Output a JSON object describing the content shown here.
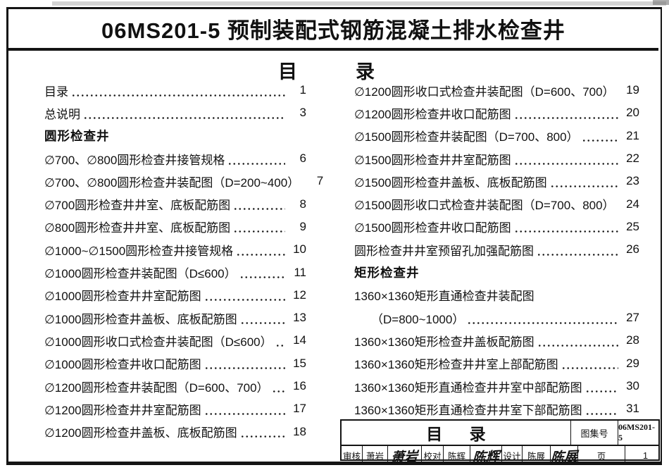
{
  "header": {
    "title": "06MS201-5 预制装配式钢筋混凝土排水检查井"
  },
  "toc_heading": {
    "left_char": "目",
    "right_char": "录"
  },
  "toc": {
    "left": [
      {
        "t": "entry",
        "label": "目录",
        "page": "1"
      },
      {
        "t": "entry",
        "label": "总说明",
        "page": "3"
      },
      {
        "t": "section",
        "label": "圆形检查井"
      },
      {
        "t": "entry",
        "label": "∅700、∅800圆形检查井接管规格",
        "page": "6"
      },
      {
        "t": "entry",
        "label": "∅700、∅800圆形检查井装配图（D=200~400）",
        "page": "7"
      },
      {
        "t": "entry",
        "label": "∅700圆形检查井井室、底板配筋图",
        "page": "8"
      },
      {
        "t": "entry",
        "label": "∅800圆形检查井井室、底板配筋图",
        "page": "9"
      },
      {
        "t": "entry",
        "label": "∅1000~∅1500圆形检查井接管规格",
        "page": "10"
      },
      {
        "t": "entry",
        "label": "∅1000圆形检查井装配图（D≤600）",
        "page": "11"
      },
      {
        "t": "entry",
        "label": "∅1000圆形检查井井室配筋图",
        "page": "12"
      },
      {
        "t": "entry",
        "label": "∅1000圆形检查井盖板、底板配筋图",
        "page": "13"
      },
      {
        "t": "entry",
        "label": "∅1000圆形收口式检查井装配图（D≤600）",
        "page": "14"
      },
      {
        "t": "entry",
        "label": "∅1000圆形检查井收口配筋图",
        "page": "15"
      },
      {
        "t": "entry",
        "label": "∅1200圆形检查井装配图（D=600、700）",
        "page": "16"
      },
      {
        "t": "entry",
        "label": "∅1200圆形检查井井室配筋图",
        "page": "17"
      },
      {
        "t": "entry",
        "label": "∅1200圆形检查井盖板、底板配筋图",
        "page": "18"
      }
    ],
    "right": [
      {
        "t": "entry",
        "label": "∅1200圆形收口式检查井装配图（D=600、700）",
        "page": "19"
      },
      {
        "t": "entry",
        "label": "∅1200圆形检查井收口配筋图",
        "page": "20"
      },
      {
        "t": "entry",
        "label": "∅1500圆形检查井装配图（D=700、800）",
        "page": "21"
      },
      {
        "t": "entry",
        "label": "∅1500圆形检查井井室配筋图",
        "page": "22"
      },
      {
        "t": "entry",
        "label": "∅1500圆形检查井盖板、底板配筋图",
        "page": "23"
      },
      {
        "t": "entry",
        "label": "∅1500圆形收口式检查井装配图（D=700、800）",
        "page": "24"
      },
      {
        "t": "entry",
        "label": "∅1500圆形检查井收口配筋图",
        "page": "25"
      },
      {
        "t": "entry",
        "label": "圆形检查井井室预留孔加强配筋图",
        "page": "26"
      },
      {
        "t": "section",
        "label": "矩形检查井"
      },
      {
        "t": "plain",
        "label": "1360×1360矩形直通检查井装配图"
      },
      {
        "t": "entry",
        "label": "（D=800~1000）",
        "page": "27",
        "indent": true
      },
      {
        "t": "entry",
        "label": "1360×1360矩形检查井盖板配筋图",
        "page": "28"
      },
      {
        "t": "entry",
        "label": "1360×1360矩形检查井井室上部配筋图",
        "page": "29"
      },
      {
        "t": "entry",
        "label": "1360×1360矩形直通检查井井室中部配筋图",
        "page": "30"
      },
      {
        "t": "entry",
        "label": "1360×1360矩形直通检查井井室下部配筋图",
        "page": "31"
      }
    ]
  },
  "title_block": {
    "doc_title": "目 录",
    "atlas_no_label": "图集号",
    "atlas_no_value": "06MS201-5",
    "page_label": "页",
    "page_value": "1",
    "reviewer_label": "审核",
    "reviewer_name": "萧岩",
    "reviewer_signature": "萧岩",
    "proofreader_label": "校对",
    "proofreader_name": "陈辉",
    "proofreader_signature": "陈辉",
    "designer_label": "设计",
    "designer_name": "陈展",
    "designer_signature": "陈展"
  },
  "colors": {
    "ink": "#141414",
    "paper": "#ffffff"
  }
}
